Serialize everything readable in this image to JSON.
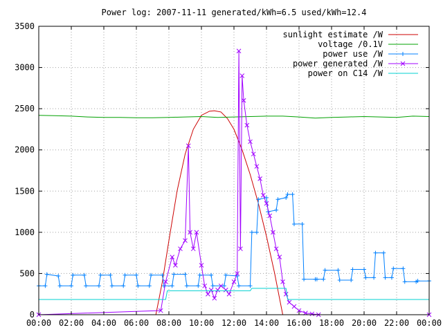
{
  "chart_data": {
    "type": "line",
    "title": "Power log: 2007-11-11 generated/kWh=6.5 used/kWh=12.4",
    "xlabel": "",
    "ylabel": "",
    "xlim": [
      0,
      24
    ],
    "ylim": [
      0,
      3500
    ],
    "x_tick_labels": [
      "00:00",
      "02:00",
      "04:00",
      "06:00",
      "08:00",
      "10:00",
      "12:00",
      "14:00",
      "16:00",
      "18:00",
      "20:00",
      "22:00",
      "00:00"
    ],
    "y_ticks": [
      0,
      500,
      1000,
      1500,
      2000,
      2500,
      3000,
      3500
    ],
    "grid": true,
    "legend_position": "top-right",
    "series": [
      {
        "name": "sunlight estimate /W",
        "color": "#cc0000",
        "marker": "none",
        "x": [
          7.2,
          7.6,
          8.0,
          8.5,
          9.0,
          9.5,
          10.0,
          10.5,
          10.8,
          11.2,
          11.6,
          12.0,
          12.5,
          13.0,
          13.5,
          14.0,
          14.5,
          14.8,
          15.0
        ],
        "y": [
          0,
          400,
          900,
          1500,
          1950,
          2250,
          2420,
          2470,
          2475,
          2460,
          2380,
          2250,
          2000,
          1700,
          1350,
          950,
          500,
          200,
          0
        ]
      },
      {
        "name": "voltage /0.1V",
        "color": "#00a000",
        "marker": "none",
        "x": [
          0,
          1,
          2,
          3,
          4,
          5,
          6,
          7,
          8,
          9,
          10,
          11,
          12,
          13,
          14,
          15,
          16,
          17,
          18,
          19,
          20,
          21,
          22,
          23,
          24
        ],
        "y": [
          2420,
          2415,
          2410,
          2400,
          2395,
          2395,
          2390,
          2390,
          2395,
          2400,
          2405,
          2395,
          2400,
          2405,
          2410,
          2410,
          2400,
          2385,
          2395,
          2400,
          2405,
          2400,
          2395,
          2410,
          2405
        ]
      },
      {
        "name": "power use /W",
        "color": "#0080ff",
        "marker": "plus",
        "x": [
          0,
          0.4,
          0.5,
          1.2,
          1.3,
          2.0,
          2.1,
          2.8,
          2.9,
          3.7,
          3.8,
          4.4,
          4.5,
          5.2,
          5.3,
          6.0,
          6.1,
          6.8,
          6.9,
          7.6,
          7.7,
          8.2,
          8.3,
          9.0,
          9.1,
          9.8,
          9.9,
          10.6,
          10.7,
          11.4,
          11.5,
          12.2,
          12.3,
          13.0,
          13.1,
          13.4,
          13.5,
          14.0,
          14.1,
          14.6,
          14.7,
          15.2,
          15.3,
          15.6,
          15.7,
          16.2,
          16.3,
          17.0,
          17.1,
          17.5,
          17.6,
          18.4,
          18.5,
          19.2,
          19.3,
          20.0,
          20.1,
          20.6,
          20.7,
          21.2,
          21.3,
          21.7,
          21.8,
          22.4,
          22.5,
          23.2,
          23.3,
          24
        ],
        "y": [
          350,
          350,
          490,
          470,
          350,
          350,
          480,
          480,
          350,
          350,
          480,
          480,
          350,
          350,
          480,
          480,
          350,
          350,
          480,
          480,
          350,
          350,
          490,
          490,
          350,
          350,
          480,
          480,
          350,
          350,
          480,
          470,
          350,
          350,
          1000,
          1000,
          1400,
          1420,
          1250,
          1270,
          1400,
          1420,
          1460,
          1460,
          1100,
          1100,
          430,
          430,
          430,
          430,
          540,
          540,
          420,
          420,
          550,
          550,
          450,
          450,
          750,
          750,
          450,
          450,
          560,
          560,
          400,
          400,
          410,
          410
        ]
      },
      {
        "name": "power generated /W",
        "color": "#a000ff",
        "marker": "x",
        "x": [
          0,
          7.5,
          7.8,
          8.2,
          8.4,
          8.7,
          9.0,
          9.2,
          9.3,
          9.5,
          9.7,
          10.0,
          10.2,
          10.4,
          10.6,
          10.8,
          11.0,
          11.2,
          11.5,
          11.7,
          12.0,
          12.2,
          12.3,
          12.4,
          12.5,
          12.6,
          12.8,
          13.0,
          13.2,
          13.4,
          13.6,
          13.8,
          14.0,
          14.2,
          14.4,
          14.6,
          14.8,
          15.0,
          15.2,
          15.4,
          15.7,
          16.0,
          16.4,
          16.8,
          17.2,
          24
        ],
        "y": [
          0,
          50,
          400,
          700,
          600,
          800,
          900,
          2050,
          1000,
          800,
          1000,
          600,
          350,
          250,
          300,
          200,
          300,
          350,
          300,
          250,
          400,
          500,
          3200,
          800,
          2900,
          2600,
          2300,
          2100,
          1950,
          1800,
          1650,
          1450,
          1350,
          1200,
          1000,
          800,
          700,
          400,
          250,
          150,
          100,
          50,
          20,
          10,
          0,
          0
        ]
      },
      {
        "name": "power on C14 /W",
        "color": "#00d0d0",
        "marker": "none",
        "x": [
          0,
          7.8,
          7.9,
          13.0,
          13.1,
          15.2,
          15.3,
          24
        ],
        "y": [
          185,
          185,
          290,
          290,
          320,
          320,
          185,
          185
        ]
      }
    ]
  }
}
